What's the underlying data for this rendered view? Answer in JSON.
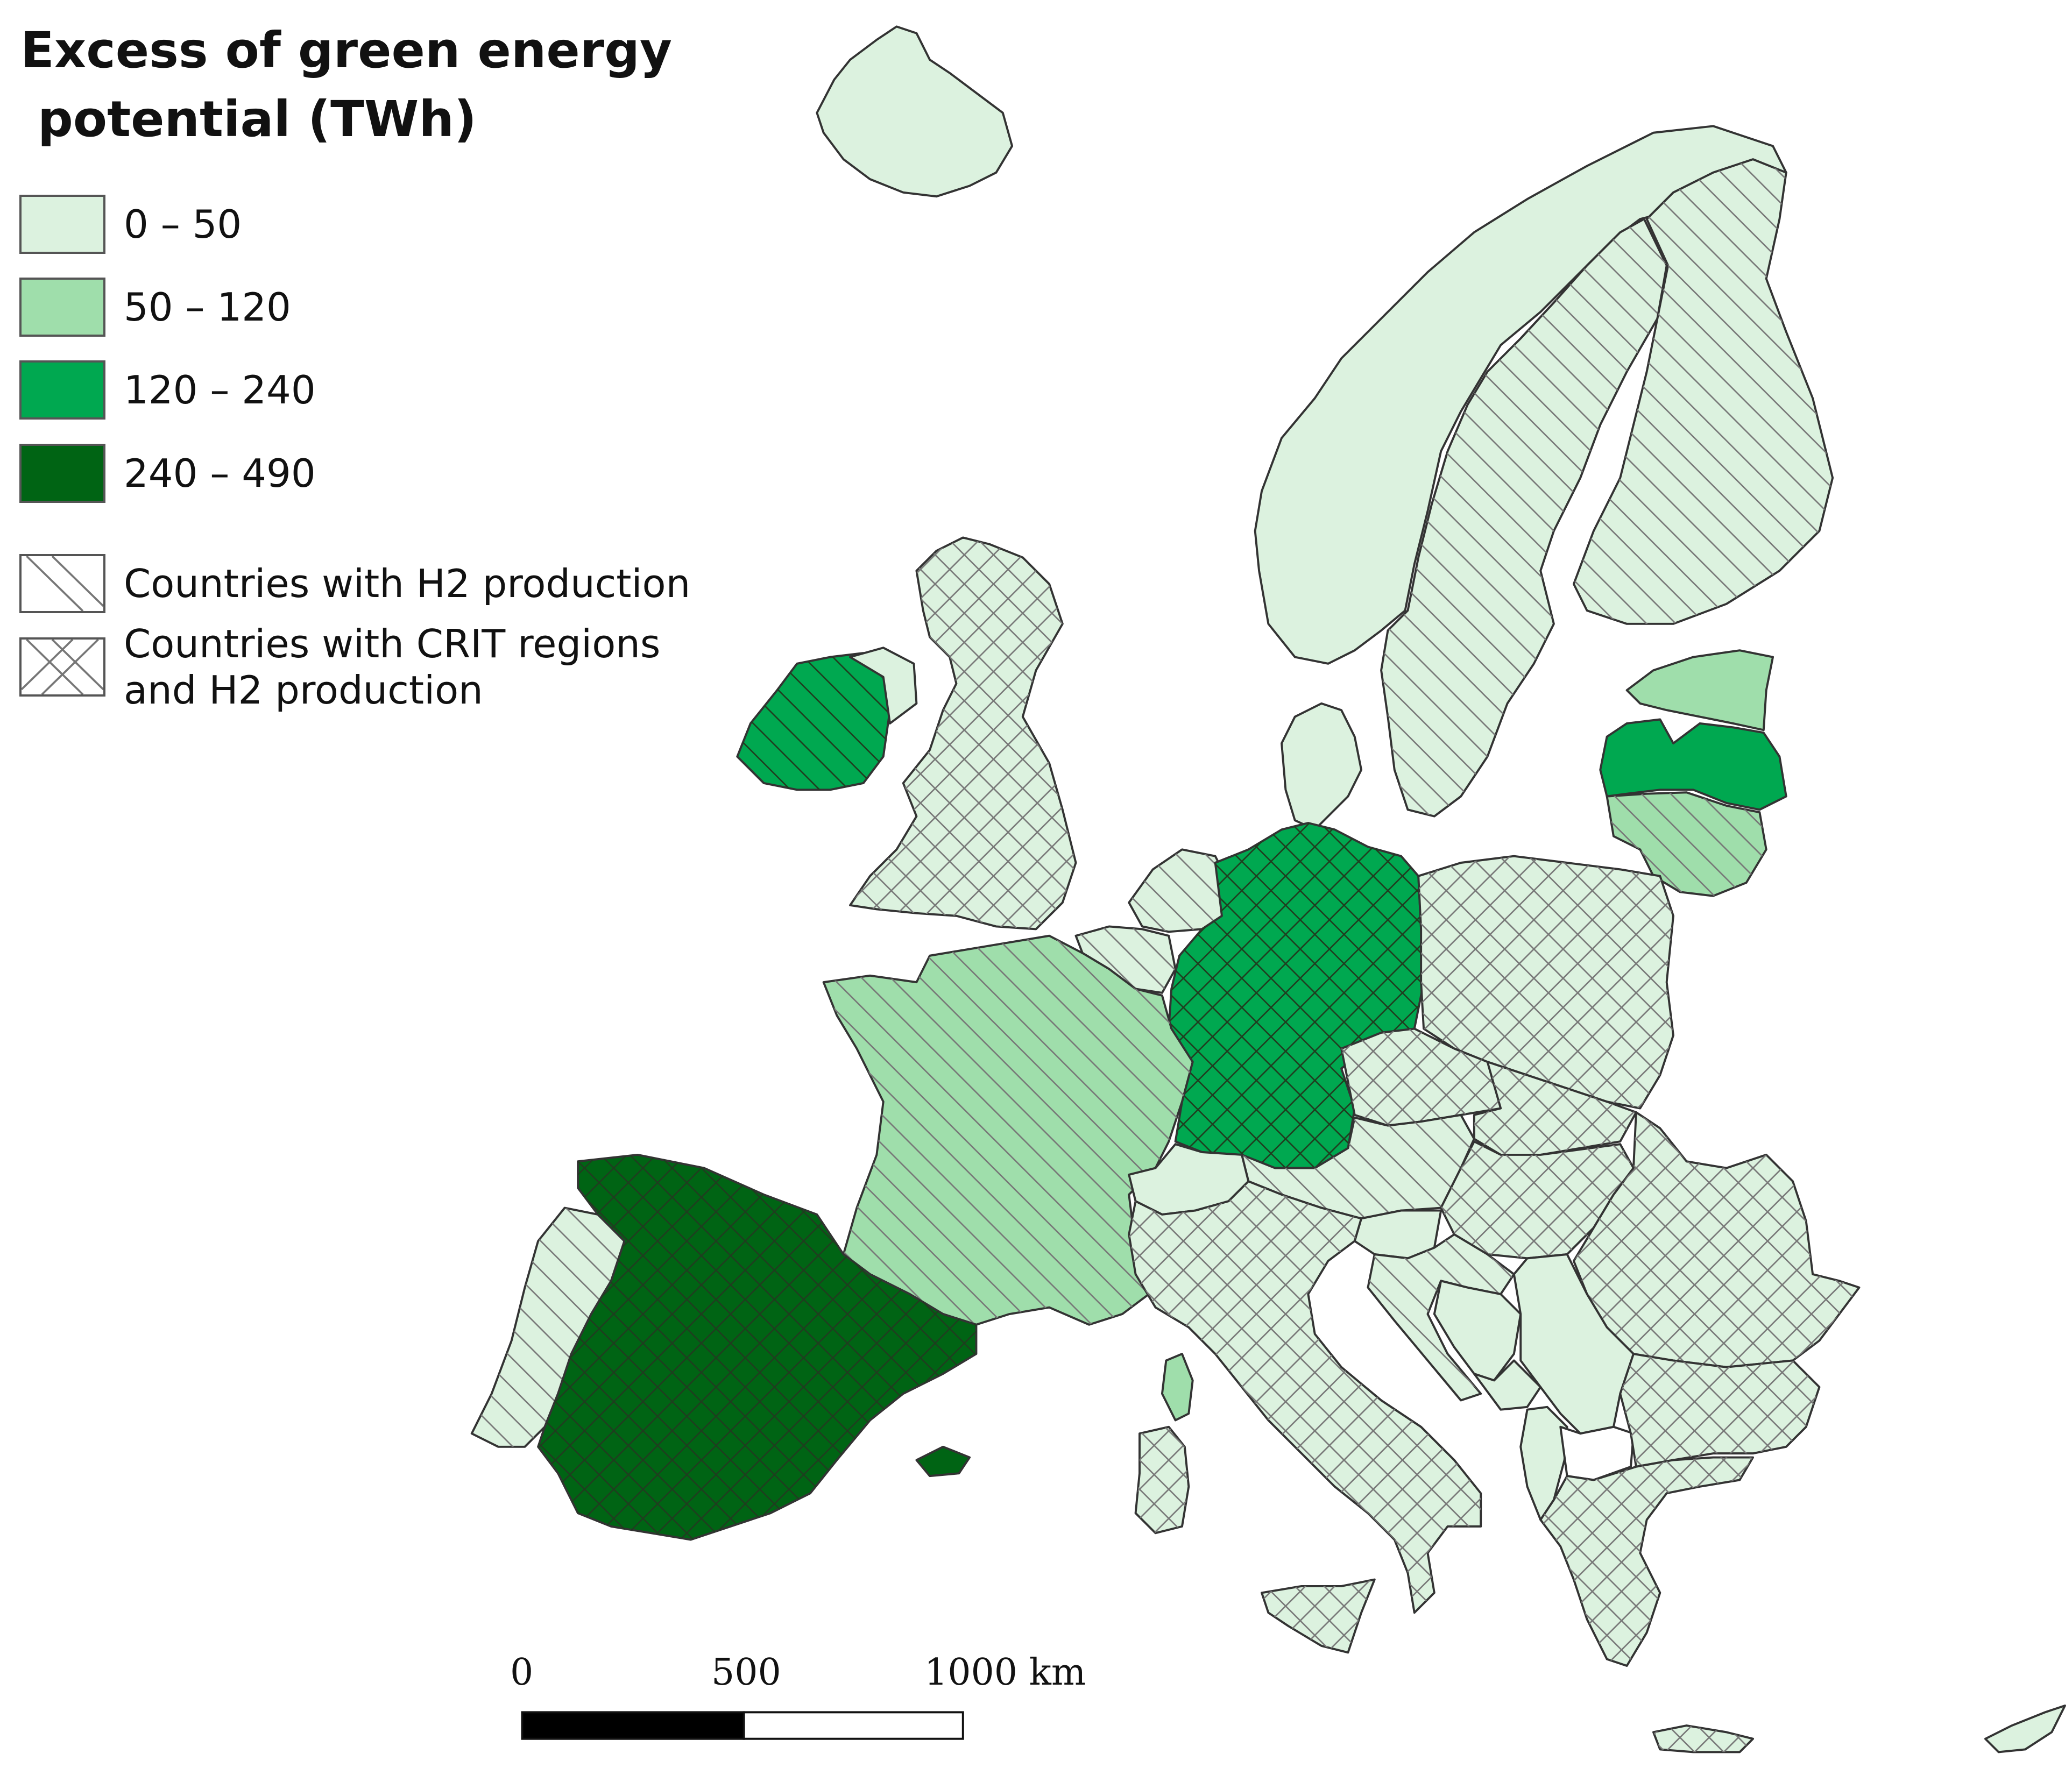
{
  "title": "Excess of green energy\n potential (TWh)",
  "colors": {
    "class_0_50": "#dcf2df",
    "class_50_120": "#9fdeab",
    "class_120_240": "#00a850",
    "class_240_490": "#006414",
    "hatch": "#777777",
    "border": "#333333",
    "nodata": "#ffffff"
  },
  "legend": {
    "classes": [
      {
        "label": "0 – 50",
        "color_key": "class_0_50"
      },
      {
        "label": "50 – 120",
        "color_key": "class_50_120"
      },
      {
        "label": "120 – 240",
        "color_key": "class_120_240"
      },
      {
        "label": "240 – 490",
        "color_key": "class_240_490"
      }
    ],
    "hatches": [
      {
        "label": "Countries with H2 production",
        "pattern": "diagonal"
      },
      {
        "label": "Countries with CRIT regions\nand H2 production",
        "pattern": "cross"
      }
    ]
  },
  "scale_bar": {
    "labels": [
      "0",
      "500",
      "1000 km"
    ]
  },
  "regions": [
    {
      "name": "Iceland",
      "class": "class_0_50",
      "hatch": "none"
    },
    {
      "name": "Norway",
      "class": "class_0_50",
      "hatch": "none"
    },
    {
      "name": "Sweden",
      "class": "class_0_50",
      "hatch": "diagonal"
    },
    {
      "name": "Finland",
      "class": "class_0_50",
      "hatch": "diagonal"
    },
    {
      "name": "Estonia",
      "class": "class_50_120",
      "hatch": "none"
    },
    {
      "name": "Latvia",
      "class": "class_120_240",
      "hatch": "none"
    },
    {
      "name": "Lithuania",
      "class": "class_50_120",
      "hatch": "diagonal"
    },
    {
      "name": "Ireland",
      "class": "class_120_240",
      "hatch": "diagonal"
    },
    {
      "name": "Northern Ireland",
      "class": "class_0_50",
      "hatch": "none"
    },
    {
      "name": "United Kingdom",
      "class": "class_0_50",
      "hatch": "cross"
    },
    {
      "name": "Denmark",
      "class": "class_0_50",
      "hatch": "none"
    },
    {
      "name": "Netherlands",
      "class": "class_0_50",
      "hatch": "diagonal"
    },
    {
      "name": "Belgium",
      "class": "class_0_50",
      "hatch": "diagonal"
    },
    {
      "name": "Germany",
      "class": "class_120_240",
      "hatch": "cross"
    },
    {
      "name": "Poland",
      "class": "class_0_50",
      "hatch": "cross"
    },
    {
      "name": "France",
      "class": "class_50_120",
      "hatch": "diagonal"
    },
    {
      "name": "Corsica",
      "class": "class_50_120",
      "hatch": "none"
    },
    {
      "name": "Czechia",
      "class": "class_0_50",
      "hatch": "cross"
    },
    {
      "name": "Slovakia",
      "class": "class_0_50",
      "hatch": "cross"
    },
    {
      "name": "Austria",
      "class": "class_0_50",
      "hatch": "diagonal"
    },
    {
      "name": "Switzerland",
      "class": "class_0_50",
      "hatch": "none"
    },
    {
      "name": "Hungary",
      "class": "class_0_50",
      "hatch": "cross"
    },
    {
      "name": "Romania",
      "class": "class_0_50",
      "hatch": "cross"
    },
    {
      "name": "Slovenia",
      "class": "class_0_50",
      "hatch": "none"
    },
    {
      "name": "Croatia",
      "class": "class_0_50",
      "hatch": "diagonal"
    },
    {
      "name": "Bosnia",
      "class": "class_0_50",
      "hatch": "none"
    },
    {
      "name": "Serbia",
      "class": "class_0_50",
      "hatch": "none"
    },
    {
      "name": "Montenegro",
      "class": "class_0_50",
      "hatch": "none"
    },
    {
      "name": "Albania",
      "class": "class_0_50",
      "hatch": "none"
    },
    {
      "name": "North Macedonia",
      "class": "nodata",
      "hatch": "none"
    },
    {
      "name": "Bulgaria",
      "class": "class_0_50",
      "hatch": "cross"
    },
    {
      "name": "Greece",
      "class": "class_0_50",
      "hatch": "cross"
    },
    {
      "name": "Crete",
      "class": "class_0_50",
      "hatch": "cross"
    },
    {
      "name": "Cyprus",
      "class": "class_0_50",
      "hatch": "none"
    },
    {
      "name": "Italy",
      "class": "class_0_50",
      "hatch": "cross"
    },
    {
      "name": "Sardinia",
      "class": "class_0_50",
      "hatch": "cross"
    },
    {
      "name": "Sicily",
      "class": "class_0_50",
      "hatch": "cross"
    },
    {
      "name": "Portugal",
      "class": "class_0_50",
      "hatch": "diagonal"
    },
    {
      "name": "Spain",
      "class": "class_240_490",
      "hatch": "cross"
    },
    {
      "name": "Balearic Islands",
      "class": "class_240_490",
      "hatch": "none"
    }
  ]
}
